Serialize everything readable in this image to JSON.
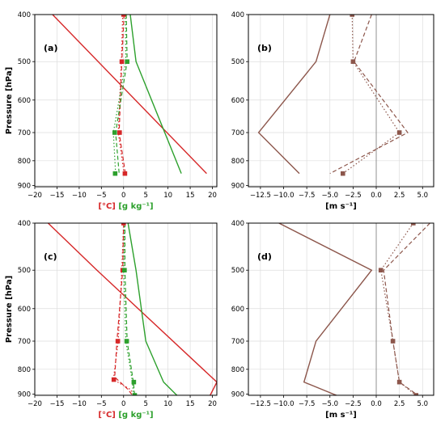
{
  "colors": {
    "temp": "#d62728",
    "mix": "#2ca02c",
    "wind": "#8c564b",
    "zero": "#888888",
    "grid": "#dddddd"
  },
  "chart_data": [
    {
      "id": "a",
      "type": "line",
      "panel_label": "(a)",
      "ylabel": "Pressure [hPa]",
      "xlabel_parts": [
        "[°C]",
        "[g kg⁻¹]"
      ],
      "xlim": [
        -20,
        21
      ],
      "ylim": [
        400,
        905
      ],
      "y_scale": "log",
      "y_inverted": true,
      "xticks": [
        -20,
        -15,
        -10,
        -5,
        0,
        5,
        10,
        15,
        20
      ],
      "yticks": [
        400,
        500,
        600,
        700,
        800,
        900
      ],
      "grid": true,
      "series": [
        {
          "style": "solid",
          "color": "temp",
          "points": [
            [
              -16,
              400
            ],
            [
              18.7,
              850
            ]
          ]
        },
        {
          "style": "dashed",
          "color": "temp",
          "points": [
            [
              0.1,
              400
            ],
            [
              -0.4,
              500
            ],
            [
              -1.0,
              700
            ],
            [
              0.4,
              850
            ]
          ]
        },
        {
          "style": "dotted",
          "color": "temp",
          "points": [
            [
              -0.2,
              400
            ],
            [
              -0.5,
              500
            ],
            [
              -1.2,
              700
            ],
            [
              0.1,
              850
            ]
          ]
        },
        {
          "style": "solid",
          "color": "mix",
          "points": [
            [
              1.5,
              400
            ],
            [
              2.8,
              500
            ],
            [
              13.0,
              850
            ]
          ]
        },
        {
          "style": "dashed",
          "color": "mix",
          "points": [
            [
              0.6,
              400
            ],
            [
              0.8,
              500
            ],
            [
              -1.8,
              700
            ],
            [
              -1.0,
              850
            ]
          ]
        },
        {
          "style": "dotted",
          "color": "mix",
          "points": [
            [
              0.4,
              400
            ],
            [
              0.5,
              500
            ],
            [
              -2.3,
              700
            ],
            [
              -1.8,
              850
            ]
          ]
        }
      ],
      "markers": [
        {
          "color": "temp",
          "x": 0.0,
          "y": 400
        },
        {
          "color": "temp",
          "x": -0.4,
          "y": 500
        },
        {
          "color": "temp",
          "x": -0.9,
          "y": 700
        },
        {
          "color": "temp",
          "x": 0.3,
          "y": 850
        },
        {
          "color": "mix",
          "x": 0.8,
          "y": 500
        },
        {
          "color": "mix",
          "x": -2.0,
          "y": 700
        },
        {
          "color": "mix",
          "x": -1.9,
          "y": 850
        }
      ]
    },
    {
      "id": "b",
      "type": "line",
      "panel_label": "(b)",
      "ylabel": "",
      "xlabel_parts": [
        "[m s⁻¹]"
      ],
      "xlim": [
        -13.8,
        6.2
      ],
      "ylim": [
        400,
        905
      ],
      "y_scale": "log",
      "y_inverted": true,
      "xticks": [
        -12.5,
        -10.0,
        -7.5,
        -5.0,
        -2.5,
        0.0,
        2.5,
        5.0
      ],
      "xtick_labels": [
        "−12.5",
        "−10.0",
        "−7.5",
        "−5.0",
        "−2.5",
        "0.0",
        "2.5",
        "5.0"
      ],
      "yticks": [
        400,
        500,
        600,
        700,
        800,
        900
      ],
      "grid": true,
      "vline": 0,
      "series": [
        {
          "style": "solid",
          "color": "wind",
          "points": [
            [
              -5.0,
              400
            ],
            [
              -6.5,
              500
            ],
            [
              -12.7,
              700
            ],
            [
              -8.3,
              850
            ]
          ]
        },
        {
          "style": "dashed",
          "color": "wind",
          "points": [
            [
              -0.5,
              400
            ],
            [
              -2.4,
              500
            ],
            [
              3.4,
              700
            ],
            [
              -5.0,
              850
            ]
          ]
        },
        {
          "style": "dotted",
          "color": "wind",
          "points": [
            [
              -2.6,
              400
            ],
            [
              -2.5,
              500
            ],
            [
              2.5,
              700
            ],
            [
              -3.6,
              850
            ]
          ]
        }
      ],
      "markers": [
        {
          "color": "wind",
          "x": -2.6,
          "y": 400
        },
        {
          "color": "wind",
          "x": -2.5,
          "y": 500
        },
        {
          "color": "wind",
          "x": 2.5,
          "y": 700
        },
        {
          "color": "wind",
          "x": -3.6,
          "y": 850
        }
      ]
    },
    {
      "id": "c",
      "type": "line",
      "panel_label": "(c)",
      "ylabel": "Pressure [hPa]",
      "xlabel_parts": [
        "[°C]",
        "[g kg⁻¹]"
      ],
      "xlim": [
        -20,
        21
      ],
      "ylim": [
        400,
        905
      ],
      "y_scale": "log",
      "y_inverted": true,
      "xticks": [
        -20,
        -15,
        -10,
        -5,
        0,
        5,
        10,
        15,
        20
      ],
      "yticks": [
        400,
        500,
        600,
        700,
        800,
        900
      ],
      "grid": true,
      "series": [
        {
          "style": "solid",
          "color": "temp",
          "points": [
            [
              -17,
              400
            ],
            [
              -6,
              500
            ],
            [
              21,
              850
            ],
            [
              19.5,
              905
            ]
          ]
        },
        {
          "style": "dashed",
          "color": "temp",
          "points": [
            [
              0.0,
              400
            ],
            [
              -0.2,
              500
            ],
            [
              -1.5,
              700
            ],
            [
              -2.0,
              830
            ],
            [
              1.0,
              880
            ],
            [
              2.0,
              905
            ]
          ]
        },
        {
          "style": "dotted",
          "color": "temp",
          "points": [
            [
              0.0,
              400
            ],
            [
              -0.4,
              500
            ],
            [
              -1.2,
              700
            ],
            [
              -2.3,
              840
            ],
            [
              1.5,
              880
            ],
            [
              2.5,
              905
            ]
          ]
        },
        {
          "style": "solid",
          "color": "mix",
          "points": [
            [
              1.0,
              400
            ],
            [
              2.8,
              500
            ],
            [
              5.0,
              700
            ],
            [
              9.0,
              850
            ],
            [
              12.0,
              905
            ]
          ]
        },
        {
          "style": "dashed",
          "color": "mix",
          "points": [
            [
              0.3,
              400
            ],
            [
              0.3,
              500
            ],
            [
              0.8,
              700
            ],
            [
              2.2,
              850
            ],
            [
              2.5,
              905
            ]
          ]
        },
        {
          "style": "dotted",
          "color": "mix",
          "points": [
            [
              0.2,
              400
            ],
            [
              0.0,
              500
            ],
            [
              0.5,
              700
            ],
            [
              2.0,
              850
            ],
            [
              2.2,
              905
            ]
          ]
        }
      ],
      "markers": [
        {
          "color": "temp",
          "x": 0.0,
          "y": 400
        },
        {
          "color": "temp",
          "x": -0.2,
          "y": 500
        },
        {
          "color": "temp",
          "x": -1.3,
          "y": 700
        },
        {
          "color": "temp",
          "x": -2.2,
          "y": 840
        },
        {
          "color": "mix",
          "x": 0.2,
          "y": 500
        },
        {
          "color": "mix",
          "x": 0.7,
          "y": 700
        },
        {
          "color": "mix",
          "x": 2.3,
          "y": 850
        },
        {
          "color": "mix",
          "x": 2.5,
          "y": 905
        }
      ]
    },
    {
      "id": "d",
      "type": "line",
      "panel_label": "(d)",
      "ylabel": "",
      "xlabel_parts": [
        "[m s⁻¹]"
      ],
      "xlim": [
        -13.8,
        6.2
      ],
      "ylim": [
        400,
        905
      ],
      "y_scale": "log",
      "y_inverted": true,
      "xticks": [
        -12.5,
        -10.0,
        -7.5,
        -5.0,
        -2.5,
        0.0,
        2.5,
        5.0
      ],
      "xtick_labels": [
        "−12.5",
        "−10.0",
        "−7.5",
        "−5.0",
        "−2.5",
        "0.0",
        "2.5",
        "5.0"
      ],
      "yticks": [
        400,
        500,
        600,
        700,
        800,
        900
      ],
      "grid": true,
      "vline": 0,
      "series": [
        {
          "style": "solid",
          "color": "wind",
          "points": [
            [
              -10.5,
              400
            ],
            [
              -0.5,
              500
            ],
            [
              -6.5,
              700
            ],
            [
              -7.8,
              850
            ],
            [
              -4.3,
              905
            ]
          ]
        },
        {
          "style": "dashed",
          "color": "wind",
          "points": [
            [
              5.8,
              400
            ],
            [
              0.8,
              500
            ],
            [
              1.8,
              700
            ],
            [
              2.5,
              850
            ],
            [
              4.5,
              905
            ]
          ]
        },
        {
          "style": "dotted",
          "color": "wind",
          "points": [
            [
              4.0,
              400
            ],
            [
              0.5,
              500
            ],
            [
              1.8,
              700
            ],
            [
              2.5,
              850
            ],
            [
              4.3,
              905
            ]
          ]
        }
      ],
      "markers": [
        {
          "color": "wind",
          "x": 4.0,
          "y": 400
        },
        {
          "color": "wind",
          "x": 0.5,
          "y": 500
        },
        {
          "color": "wind",
          "x": 1.8,
          "y": 700
        },
        {
          "color": "wind",
          "x": 2.5,
          "y": 850
        },
        {
          "color": "wind",
          "x": 4.3,
          "y": 905
        }
      ]
    }
  ]
}
